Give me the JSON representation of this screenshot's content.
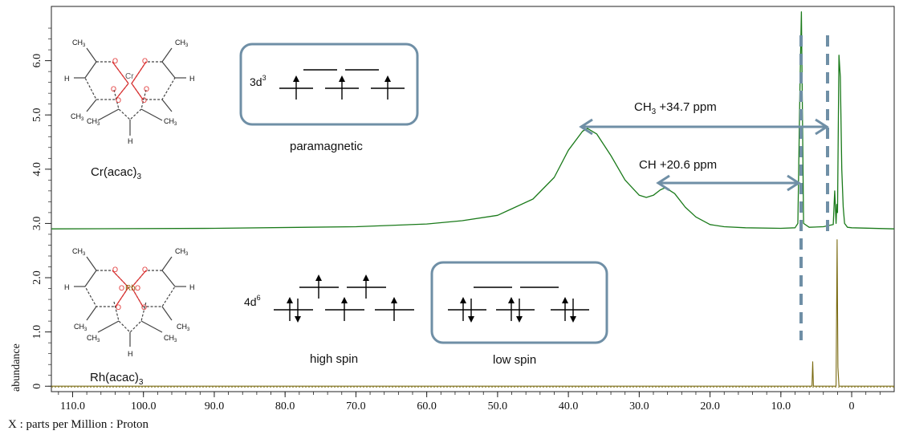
{
  "chart_data": {
    "type": "line",
    "xlabel": "X : parts per Million : Proton",
    "ylabel": "abundance",
    "xlim": [
      113,
      -6
    ],
    "ylim": [
      -0.1,
      7.0
    ],
    "x_ticks": [
      "110.0",
      "100.0",
      "90.0",
      "80.0",
      "70.0",
      "60.0",
      "50.0",
      "40.0",
      "30.0",
      "20.0",
      "10.0",
      "0"
    ],
    "y_ticks": [
      "0",
      "1.0",
      "2.0",
      "3.0",
      "4.0",
      "5.0",
      "6.0"
    ],
    "series": [
      {
        "name": "",
        "color": "#1a7a1a",
        "baseline": 2.9,
        "x": [
          113,
          90,
          70,
          60,
          55,
          50,
          45,
          42,
          40,
          38,
          37.3,
          36,
          34,
          32,
          30,
          29,
          28,
          27,
          26.3,
          25,
          23.5,
          22,
          20,
          18,
          15,
          10,
          8,
          7.6,
          7.3,
          7.1,
          6.8,
          6,
          4,
          2.6,
          2.4,
          2.2,
          2.1,
          2.0,
          1.8,
          1.6,
          1.4,
          1.2,
          1.0,
          0.6,
          0,
          -6
        ],
        "y": [
          2.9,
          2.91,
          2.94,
          2.99,
          3.05,
          3.15,
          3.45,
          3.85,
          4.35,
          4.7,
          4.75,
          4.65,
          4.25,
          3.8,
          3.52,
          3.48,
          3.52,
          3.62,
          3.66,
          3.55,
          3.3,
          3.12,
          2.98,
          2.94,
          2.92,
          2.91,
          2.92,
          3.0,
          5.5,
          6.9,
          3.0,
          2.93,
          2.94,
          2.98,
          3.6,
          3.0,
          3.35,
          3.2,
          6.1,
          5.7,
          4.0,
          3.3,
          3.0,
          2.93,
          2.92,
          2.9
        ]
      },
      {
        "name": "",
        "color": "#7a6a10",
        "baseline": 0.0,
        "x": [
          113,
          5.6,
          5.5,
          5.4,
          2.2,
          2.06,
          1.94,
          1.8,
          -6
        ],
        "y": [
          0.0,
          0.0,
          0.45,
          0.0,
          0.0,
          2.7,
          0.35,
          0.0,
          0.0
        ]
      }
    ],
    "annotations": {
      "cr_label": "Cr(acac)",
      "cr_sub": "3",
      "rh_label": "Rh(acac)",
      "rh_sub": "3",
      "cr_config": "3d",
      "cr_config_sup": "3",
      "rh_config": "4d",
      "rh_config_sup": "6",
      "paramagnetic": "paramagnetic",
      "high_spin": "high spin",
      "low_spin": "low spin",
      "ch3_prefix": "CH",
      "ch3_sub": "3",
      "ch3_shift": " +34.7 ppm",
      "ch_shift": "CH  +20.6 ppm",
      "ch3_arrow_ppm": [
        37.2,
        1.8
      ],
      "ch_arrow_ppm": [
        26.3,
        5.5
      ]
    },
    "molecule": {
      "methyl": "CH",
      "methyl_sub": "3",
      "hydrogen": "H",
      "oxygen": "O",
      "cr_metal": "Cr",
      "rh_metal": "Rh"
    }
  }
}
